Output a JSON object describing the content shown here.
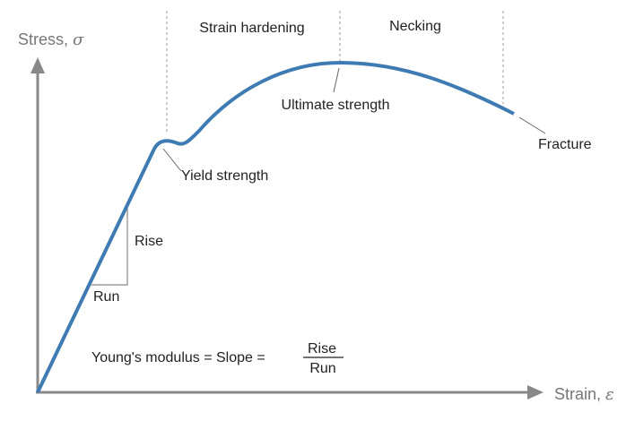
{
  "colors": {
    "curve": "#3f7bb3",
    "axis": "#888888",
    "divider": "#9a9a9a",
    "leader": "#666666",
    "text": "#222222",
    "axis_text": "#777777"
  },
  "axes": {
    "y_label": "Stress, ",
    "y_symbol": "σ",
    "x_label": "Strain, ",
    "x_symbol": "ε"
  },
  "regions": {
    "strain_hardening": "Strain hardening",
    "necking": "Necking"
  },
  "points": {
    "yield": "Yield strength",
    "ultimate": "Ultimate strength",
    "fracture": "Fracture"
  },
  "slope_triangle": {
    "rise": "Rise",
    "run": "Run"
  },
  "formula": {
    "lhs": "Young's modulus = Slope = ",
    "numerator": "Rise",
    "denominator": "Run"
  }
}
